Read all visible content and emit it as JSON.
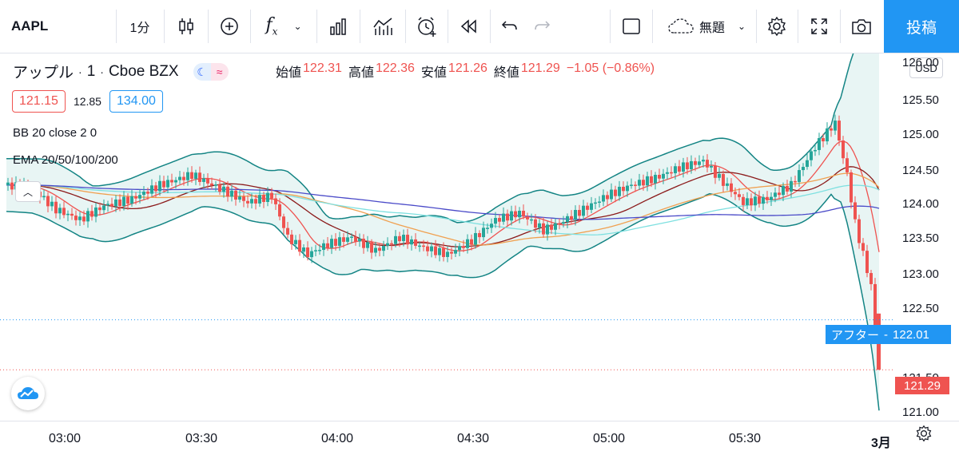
{
  "toolbar": {
    "symbol": "AAPL",
    "interval": "1分",
    "layout_name": "無題",
    "post_label": "投稿"
  },
  "legend": {
    "name": "アップル",
    "interval": "1",
    "exchange": "Cboe BZX",
    "open_label": "始値",
    "open": "122.31",
    "high_label": "高値",
    "high": "122.36",
    "low_label": "安値",
    "low": "121.26",
    "close_label": "終値",
    "close": "121.29",
    "change": "−1.05 (−0.86%)",
    "bid": "121.15",
    "spread": "12.85",
    "ask": "134.00"
  },
  "indicators": {
    "bb": "BB 20 close 2 0",
    "ema": "EMA 20/50/100/200"
  },
  "price_scale": {
    "currency": "USD",
    "labels": [
      "126.00",
      "125.50",
      "125.00",
      "124.50",
      "124.00",
      "123.50",
      "123.00",
      "122.50",
      "121.50",
      "121.00"
    ],
    "after_label": "アフター",
    "after_price": "122.01",
    "last_price": "121.29"
  },
  "time_axis": {
    "labels": [
      "03:00",
      "03:30",
      "04:00",
      "04:30",
      "05:00",
      "05:30",
      "3月"
    ]
  },
  "colors": {
    "accent": "#2196f3",
    "up": "#26a69a",
    "down": "#ef5350",
    "bb_line": "#138484",
    "bb_fill": "#e8f5f4"
  }
}
